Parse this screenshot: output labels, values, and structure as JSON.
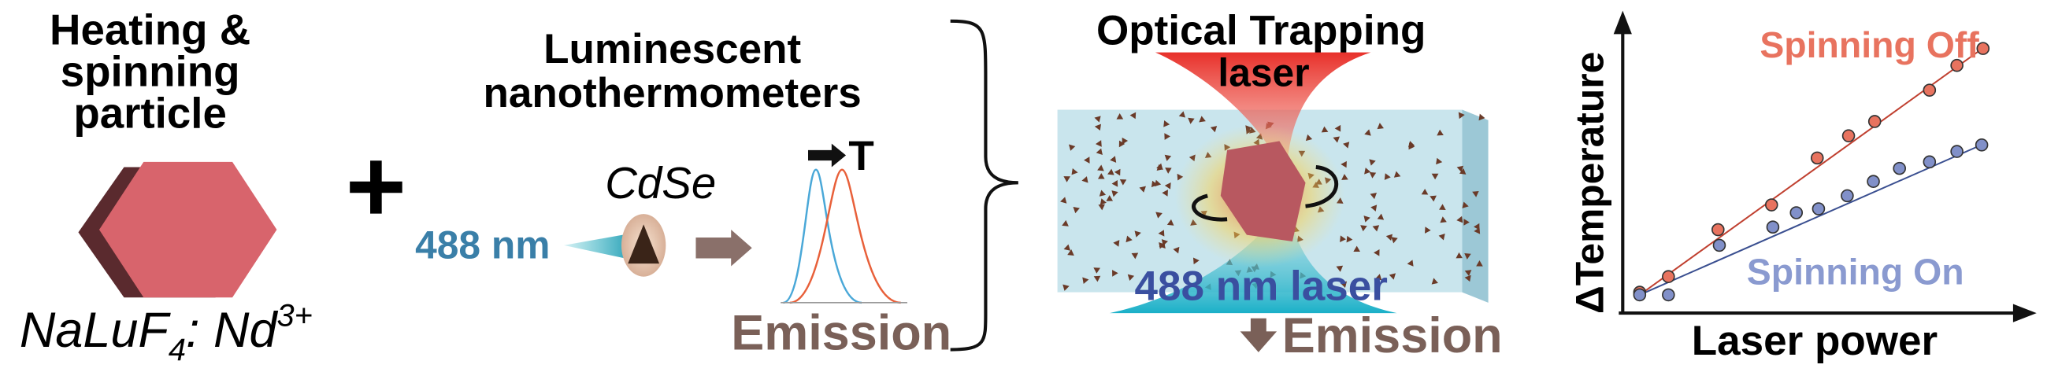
{
  "left": {
    "title_lines": [
      "Heating &",
      "spinning",
      "particle"
    ],
    "formula": {
      "base": "NaLuF",
      "sub": "4",
      "mid": ": Nd",
      "sup": "3+"
    }
  },
  "plus": "+",
  "middle": {
    "title_lines": [
      "Luminescent",
      "nanothermometers"
    ],
    "material": "CdSe",
    "excitation": "488 nm",
    "shift": "T",
    "output": "Emission"
  },
  "trap": {
    "title": "Optical Trapping",
    "top_laser": "laser",
    "bottom_laser": "488 nm laser",
    "output": "Emission"
  },
  "plot": {
    "series": [
      "Spinning Off",
      "Spinning On"
    ],
    "y_label": "ΔTemperature",
    "x_label": "Laser power"
  }
}
